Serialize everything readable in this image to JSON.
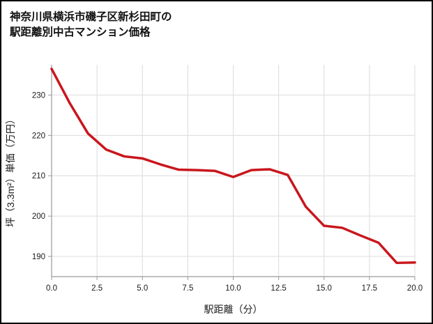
{
  "title": {
    "line1": "神奈川県横浜市磯子区新杉田町の",
    "line2": "駅距離別中古マンション価格"
  },
  "chart_data": {
    "type": "line",
    "title": "神奈川県横浜市磯子区新杉田町の駅距離別中古マンション価格",
    "xlabel": "駅距離（分）",
    "ylabel": "坪（3.3m²）単価（万円）",
    "x": [
      0,
      1,
      2,
      3,
      4,
      5,
      6,
      7,
      8,
      9,
      10,
      11,
      12,
      13,
      14,
      15,
      16,
      17,
      18,
      19,
      20
    ],
    "values": [
      236.5,
      228,
      220.5,
      216.5,
      214.8,
      214.3,
      212.8,
      211.5,
      211.4,
      211.2,
      209.7,
      211.4,
      211.6,
      210.2,
      202.3,
      197.6,
      197.1,
      195.2,
      193.4,
      188.4,
      188.5
    ],
    "xlim": [
      0,
      20
    ],
    "ylim": [
      185,
      237.5
    ],
    "x_tick_values": [
      0,
      2.5,
      5,
      7.5,
      10,
      12.5,
      15,
      17.5,
      20
    ],
    "x_tick_labels": [
      "0.0",
      "2.5",
      "5.0",
      "7.5",
      "10.0",
      "12.5",
      "15.0",
      "17.5",
      "20.0"
    ],
    "y_tick_values": [
      190,
      200,
      210,
      220,
      230
    ],
    "y_tick_labels": [
      "190",
      "200",
      "210",
      "220",
      "230"
    ],
    "grid": true,
    "legend": "none",
    "line_color": "#c9161d",
    "grid_color": "#dcdcdc",
    "axis_color": "#9a9a9a"
  }
}
